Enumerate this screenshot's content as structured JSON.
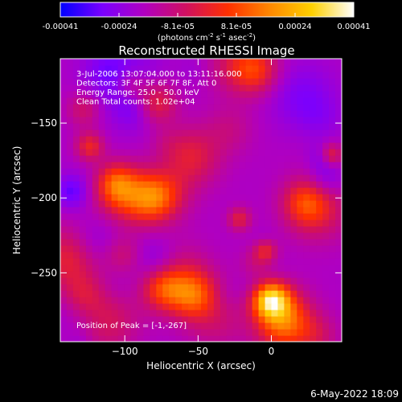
{
  "chart_data": {
    "type": "heatmap",
    "title": "Reconstructed RHESSI Image",
    "colorbar": {
      "ticks": [
        "-0.00041",
        "-0.00024",
        "-8.1e-05",
        "8.1e-05",
        "0.00024",
        "0.00041"
      ],
      "label_main": "(photons cm",
      "label_exp1": "-2",
      "label_mid1": " s",
      "label_exp2": "-1",
      "label_mid2": " asec",
      "label_exp3": "-2",
      "label_end": ")",
      "range": [
        -0.00041,
        0.00041
      ]
    },
    "annotations": [
      "3-Jul-2006 13:07:04.000 to 13:11:16.000",
      "Detectors: 3F 4F 5F 6F 7F 8F, Att 0",
      "Energy Range: 25.0 - 50.0 keV",
      "Clean    Total counts: 1.02e+04"
    ],
    "peak_label": "Position of Peak = [-1,-267]",
    "peak_position": [
      -1,
      -267
    ],
    "xlabel": "Heliocentric X (arcsec)",
    "ylabel": "Heliocentric Y (arcsec)",
    "xlim": [
      -144,
      48
    ],
    "ylim": [
      -296,
      -107
    ],
    "x_ticks": [
      {
        "value": -100,
        "label": "−100"
      },
      {
        "value": -50,
        "label": "−50"
      },
      {
        "value": 0,
        "label": "0"
      }
    ],
    "y_ticks": [
      {
        "value": -150,
        "label": "−150"
      },
      {
        "value": -200,
        "label": "−200"
      },
      {
        "value": -250,
        "label": "−250"
      }
    ],
    "grid": false,
    "colormap_stops": [
      "#0000ff",
      "#7a00ff",
      "#b000c0",
      "#d01060",
      "#ff3000",
      "#ff8800",
      "#ffd000",
      "#ffffff"
    ]
  },
  "footer": {
    "timestamp": "6-May-2022 18:09"
  }
}
